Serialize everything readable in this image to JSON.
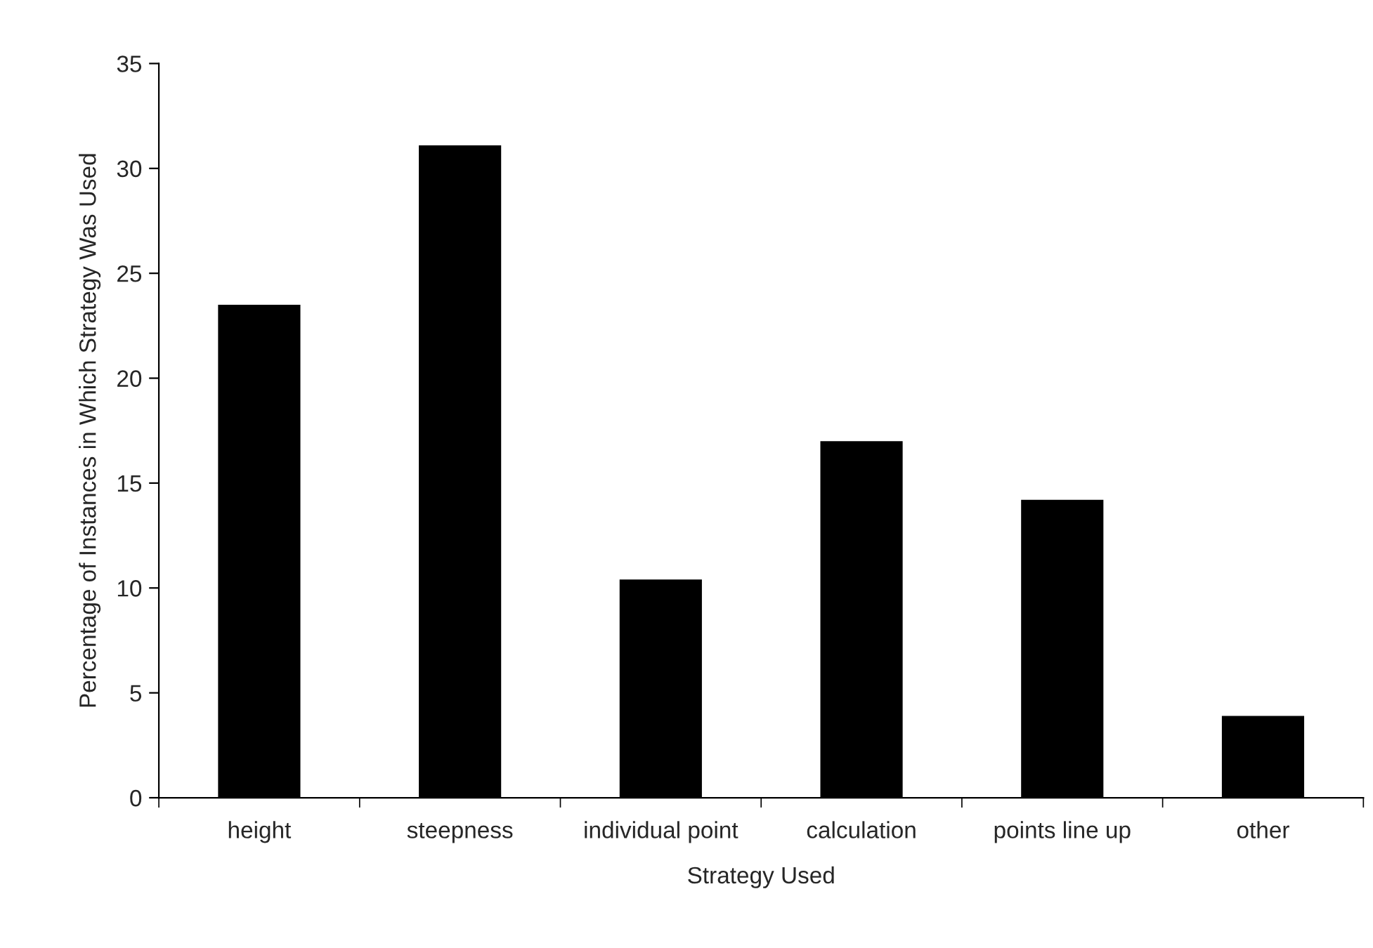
{
  "chart_data": {
    "type": "bar",
    "xlabel": "Strategy Used",
    "ylabel": "Percentage of Instances in Which Strategy Was Used",
    "categories": [
      "height",
      "steepness",
      "individual point",
      "calculation",
      "points line up",
      "other"
    ],
    "values": [
      23.5,
      31.1,
      10.4,
      17.0,
      14.2,
      3.9
    ],
    "color": "#000000",
    "ylim": [
      0,
      35
    ],
    "yticks": [
      0,
      5,
      10,
      15,
      20,
      25,
      30,
      35
    ],
    "grid": false
  }
}
